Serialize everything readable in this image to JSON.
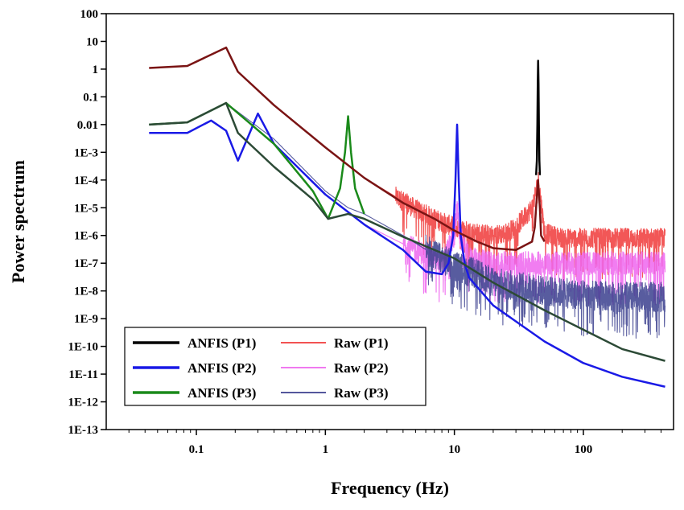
{
  "chart_data": {
    "type": "line",
    "title": "",
    "xlabel": "Frequency (Hz)",
    "ylabel": "Power spectrum",
    "x_scale": "log",
    "y_scale": "log",
    "xlim": [
      0.02,
      500
    ],
    "ylim": [
      1e-13,
      100
    ],
    "grid": false,
    "x_ticks": [
      {
        "value": 0.1,
        "label": "0.1"
      },
      {
        "value": 1,
        "label": "1"
      },
      {
        "value": 10,
        "label": "10"
      },
      {
        "value": 100,
        "label": "100"
      }
    ],
    "y_ticks": [
      {
        "value": 100,
        "label": "100"
      },
      {
        "value": 10,
        "label": "10"
      },
      {
        "value": 1,
        "label": "1"
      },
      {
        "value": 0.1,
        "label": "0.1"
      },
      {
        "value": 0.01,
        "label": "0.01"
      },
      {
        "value": 0.001,
        "label": "1E-3"
      },
      {
        "value": 0.0001,
        "label": "1E-4"
      },
      {
        "value": 1e-05,
        "label": "1E-5"
      },
      {
        "value": 1e-06,
        "label": "1E-6"
      },
      {
        "value": 1e-07,
        "label": "1E-7"
      },
      {
        "value": 1e-08,
        "label": "1E-8"
      },
      {
        "value": 1e-09,
        "label": "1E-9"
      },
      {
        "value": 1e-10,
        "label": "1E-10"
      },
      {
        "value": 1e-11,
        "label": "1E-11"
      },
      {
        "value": 1e-12,
        "label": "1E-12"
      },
      {
        "value": 1e-13,
        "label": "1E-13"
      }
    ],
    "legend_position": "bottom-left",
    "series": [
      {
        "name": "Raw (P1)",
        "color": "#f03a3a",
        "width": 1.2,
        "opacity": 0.85,
        "x": [
          0.043,
          0.085,
          0.17,
          0.21,
          0.4,
          1,
          2,
          3.5,
          5,
          7,
          10,
          15,
          20,
          25,
          30,
          40,
          45,
          50,
          70,
          100,
          200,
          430
        ],
        "y": [
          1.1,
          1.3,
          6,
          0.8,
          0.05,
          0.0015,
          0.00012,
          2.5e-05,
          9e-06,
          4e-06,
          2e-06,
          1.2e-06,
          1e-06,
          1.2e-06,
          2e-06,
          1e-05,
          0.0001,
          1.2e-06,
          8e-07,
          8e-07,
          8e-07,
          8e-07
        ],
        "noise": {
          "start": 3.5,
          "amplitude": 4
        }
      },
      {
        "name": "Raw (P2)",
        "color": "#ee66ee",
        "width": 1.2,
        "opacity": 0.85,
        "x": [
          0.043,
          0.085,
          0.13,
          0.17,
          0.21,
          0.3,
          0.4,
          1,
          2,
          4,
          6,
          8,
          10,
          10.5,
          11,
          13,
          20,
          50,
          100,
          200,
          430
        ],
        "y": [
          0.005,
          0.005,
          0.014,
          0.006,
          0.0005,
          0.025,
          0.002,
          3e-05,
          2.5e-06,
          5e-07,
          2e-07,
          1e-07,
          1e-06,
          1e-05,
          1e-06,
          1.5e-07,
          1e-07,
          1e-07,
          1e-07,
          1e-07,
          1e-07
        ],
        "noise": {
          "start": 4,
          "amplitude": 5
        }
      },
      {
        "name": "Raw (P3)",
        "color": "#3b3f8e",
        "width": 1.1,
        "opacity": 0.85,
        "x": [
          0.043,
          0.085,
          0.17,
          0.4,
          1,
          1.5,
          2,
          4,
          7,
          10,
          15,
          20,
          50,
          100,
          200,
          430
        ],
        "y": [
          0.01,
          0.012,
          0.06,
          0.003,
          4e-05,
          1e-05,
          6e-06,
          1e-06,
          2e-07,
          8e-08,
          4e-08,
          2e-08,
          1e-08,
          7e-09,
          6e-09,
          6e-09
        ],
        "noise": {
          "start": 6,
          "amplitude": 8
        }
      },
      {
        "name": "ANFIS (P1)",
        "color": "#000000",
        "width": 2.5,
        "opacity": 1,
        "x": [
          43,
          43.6,
          44,
          44.3,
          44.6,
          44.9,
          45.2,
          45.6,
          46
        ],
        "y": [
          0.00015,
          0.0005,
          0.01,
          0.3,
          2,
          0.3,
          0.01,
          0.0005,
          0.00015
        ]
      },
      {
        "name": "ANFIS (P2)",
        "color": "#1a1ae6",
        "width": 2.5,
        "opacity": 1,
        "x": [
          0.043,
          0.085,
          0.13,
          0.17,
          0.21,
          0.3,
          0.4,
          1,
          2,
          4,
          6,
          8,
          9,
          9.8,
          10.2,
          10.5,
          10.8,
          11.2,
          12,
          13,
          20,
          50,
          100,
          200,
          430
        ],
        "y": [
          0.005,
          0.005,
          0.014,
          0.006,
          0.0005,
          0.025,
          0.002,
          3e-05,
          2.5e-06,
          3e-07,
          5e-08,
          4e-08,
          1e-07,
          1e-06,
          0.0001,
          0.01,
          0.0001,
          1e-06,
          1e-07,
          3e-08,
          3e-09,
          1.5e-10,
          2.5e-11,
          8e-12,
          3.5e-12
        ]
      },
      {
        "name": "ANFIS (P3)",
        "color": "#1a8a1a",
        "width": 2.5,
        "opacity": 1,
        "x": [
          0.043,
          0.085,
          0.17,
          0.4,
          0.8,
          1.05,
          1.3,
          1.42,
          1.5,
          1.58,
          1.7,
          2
        ],
        "y": [
          0.01,
          0.012,
          0.06,
          0.002,
          4e-05,
          4e-06,
          5e-05,
          0.001,
          0.02,
          0.001,
          5e-05,
          6e-06
        ]
      },
      {
        "name": "",
        "color": "#2c4a36",
        "width": 2.5,
        "opacity": 1,
        "legend": false,
        "x": [
          0.043,
          0.085,
          0.17,
          0.21,
          0.4,
          0.8,
          1.05,
          1.5,
          2,
          4,
          10,
          20,
          50,
          100,
          200,
          430
        ],
        "y": [
          0.01,
          0.012,
          0.06,
          0.005,
          0.0003,
          2e-05,
          4e-06,
          6e-06,
          4e-06,
          9e-07,
          1.5e-07,
          2e-08,
          2e-09,
          4e-10,
          8e-11,
          3e-11
        ]
      },
      {
        "name": "",
        "color": "#7a1414",
        "width": 2.5,
        "opacity": 1,
        "legend": false,
        "x": [
          0.043,
          0.085,
          0.17,
          0.21,
          0.4,
          1,
          2,
          4,
          7,
          10,
          15,
          20,
          30,
          40,
          42,
          43,
          44.5,
          46,
          47,
          50
        ],
        "y": [
          1.1,
          1.3,
          6,
          0.8,
          0.05,
          0.0015,
          0.00012,
          1.5e-05,
          4e-06,
          1.5e-06,
          6e-07,
          3.5e-07,
          3e-07,
          6e-07,
          2e-06,
          1e-05,
          0.0001,
          1e-05,
          1e-06,
          6e-07
        ]
      }
    ],
    "legend": [
      {
        "label": "ANFIS (P1)",
        "color": "#000000"
      },
      {
        "label": "Raw (P1)",
        "color": "#f03a3a"
      },
      {
        "label": "ANFIS (P2)",
        "color": "#1a1ae6"
      },
      {
        "label": "Raw (P2)",
        "color": "#ee66ee"
      },
      {
        "label": "ANFIS (P3)",
        "color": "#1a8a1a"
      },
      {
        "label": "Raw (P3)",
        "color": "#3b3f8e"
      }
    ]
  }
}
